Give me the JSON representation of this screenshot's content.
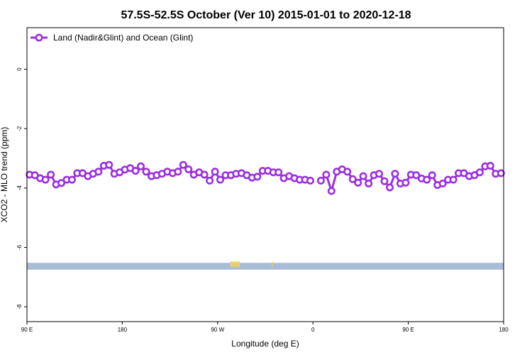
{
  "chart_data": {
    "type": "line",
    "title": "57.5S-52.5S October (Ver 10)   2015-01-01 to 2020-12-18",
    "xlabel": "Longitude (deg E)",
    "ylabel": "XCO2 - MLO trend (ppm)",
    "xlim": [
      90,
      540
    ],
    "ylim": [
      -8.5,
      1.4
    ],
    "x_unwrapped_note_free": true,
    "x_ticks": [
      {
        "value": 90,
        "label": "90 E"
      },
      {
        "value": 180,
        "label": "180"
      },
      {
        "value": 270,
        "label": "90 W"
      },
      {
        "value": 360,
        "label": "0"
      },
      {
        "value": 450,
        "label": "90 E"
      },
      {
        "value": 540,
        "label": "180"
      }
    ],
    "y_ticks": [
      {
        "value": 0,
        "label": "0"
      },
      {
        "value": -2,
        "label": "-2"
      },
      {
        "value": -4,
        "label": "-4"
      },
      {
        "value": -6,
        "label": "-6"
      },
      {
        "value": -8,
        "label": "-8"
      }
    ],
    "legend_position": "top-left",
    "series": [
      {
        "name": "Land (Nadir&Glint) and Ocean (Glint)",
        "color": "#9b30e0",
        "segments": [
          [
            [
              92.5,
              -3.55
            ],
            [
              97.5,
              -3.57
            ],
            [
              102.5,
              -3.67
            ],
            [
              107.5,
              -3.72
            ],
            [
              112.5,
              -3.55
            ],
            [
              117.5,
              -3.88
            ],
            [
              122.5,
              -3.83
            ],
            [
              127.5,
              -3.72
            ],
            [
              132.5,
              -3.72
            ],
            [
              137.5,
              -3.5
            ],
            [
              142.5,
              -3.5
            ],
            [
              147.5,
              -3.6
            ],
            [
              152.5,
              -3.52
            ],
            [
              157.5,
              -3.45
            ],
            [
              162.5,
              -3.25
            ],
            [
              167.5,
              -3.22
            ],
            [
              172.5,
              -3.52
            ],
            [
              177.5,
              -3.47
            ],
            [
              182.5,
              -3.38
            ],
            [
              187.5,
              -3.33
            ],
            [
              192.5,
              -3.42
            ],
            [
              197.5,
              -3.27
            ],
            [
              202.5,
              -3.45
            ],
            [
              207.5,
              -3.6
            ],
            [
              212.5,
              -3.57
            ],
            [
              217.5,
              -3.52
            ],
            [
              222.5,
              -3.45
            ],
            [
              227.5,
              -3.5
            ],
            [
              232.5,
              -3.45
            ],
            [
              237.5,
              -3.22
            ],
            [
              242.5,
              -3.37
            ],
            [
              247.5,
              -3.55
            ],
            [
              252.5,
              -3.47
            ],
            [
              257.5,
              -3.55
            ],
            [
              262.5,
              -3.75
            ],
            [
              267.5,
              -3.45
            ],
            [
              272.5,
              -3.72
            ],
            [
              277.5,
              -3.57
            ],
            [
              282.5,
              -3.57
            ],
            [
              287.5,
              -3.52
            ],
            [
              292.5,
              -3.5
            ],
            [
              297.5,
              -3.57
            ],
            [
              302.5,
              -3.65
            ],
            [
              307.5,
              -3.62
            ],
            [
              312.5,
              -3.42
            ],
            [
              317.5,
              -3.42
            ],
            [
              322.5,
              -3.47
            ],
            [
              327.5,
              -3.47
            ],
            [
              332.5,
              -3.67
            ],
            [
              337.5,
              -3.6
            ],
            [
              342.5,
              -3.67
            ],
            [
              347.5,
              -3.72
            ],
            [
              352.5,
              -3.72
            ],
            [
              357.5,
              -3.75
            ]
          ],
          [
            [
              367.5,
              -3.75
            ],
            [
              372.5,
              -3.55
            ],
            [
              377.5,
              -4.1
            ],
            [
              382.5,
              -3.45
            ],
            [
              387.5,
              -3.37
            ],
            [
              392.5,
              -3.45
            ],
            [
              397.5,
              -3.7
            ],
            [
              402.5,
              -3.82
            ],
            [
              407.5,
              -3.6
            ],
            [
              412.5,
              -3.85
            ],
            [
              417.5,
              -3.57
            ],
            [
              422.5,
              -3.52
            ],
            [
              427.5,
              -3.77
            ],
            [
              432.5,
              -3.98
            ],
            [
              437.5,
              -3.52
            ],
            [
              442.5,
              -3.85
            ],
            [
              447.5,
              -3.82
            ],
            [
              452.5,
              -3.55
            ],
            [
              457.5,
              -3.57
            ],
            [
              462.5,
              -3.68
            ],
            [
              467.5,
              -3.72
            ],
            [
              472.5,
              -3.57
            ],
            [
              477.5,
              -3.9
            ],
            [
              482.5,
              -3.85
            ],
            [
              487.5,
              -3.72
            ],
            [
              492.5,
              -3.72
            ],
            [
              497.5,
              -3.5
            ],
            [
              502.5,
              -3.5
            ],
            [
              507.5,
              -3.6
            ],
            [
              512.5,
              -3.57
            ],
            [
              517.5,
              -3.47
            ],
            [
              522.5,
              -3.27
            ],
            [
              527.5,
              -3.25
            ],
            [
              532.5,
              -3.52
            ],
            [
              537.5,
              -3.5
            ]
          ]
        ]
      }
    ],
    "background_band": {
      "y_range": [
        -6.75,
        -6.52
      ],
      "color": "#a8bcd8",
      "land_color": "#f0d060",
      "land_x": [
        [
          282,
          291
        ],
        [
          321,
          322
        ]
      ]
    }
  }
}
